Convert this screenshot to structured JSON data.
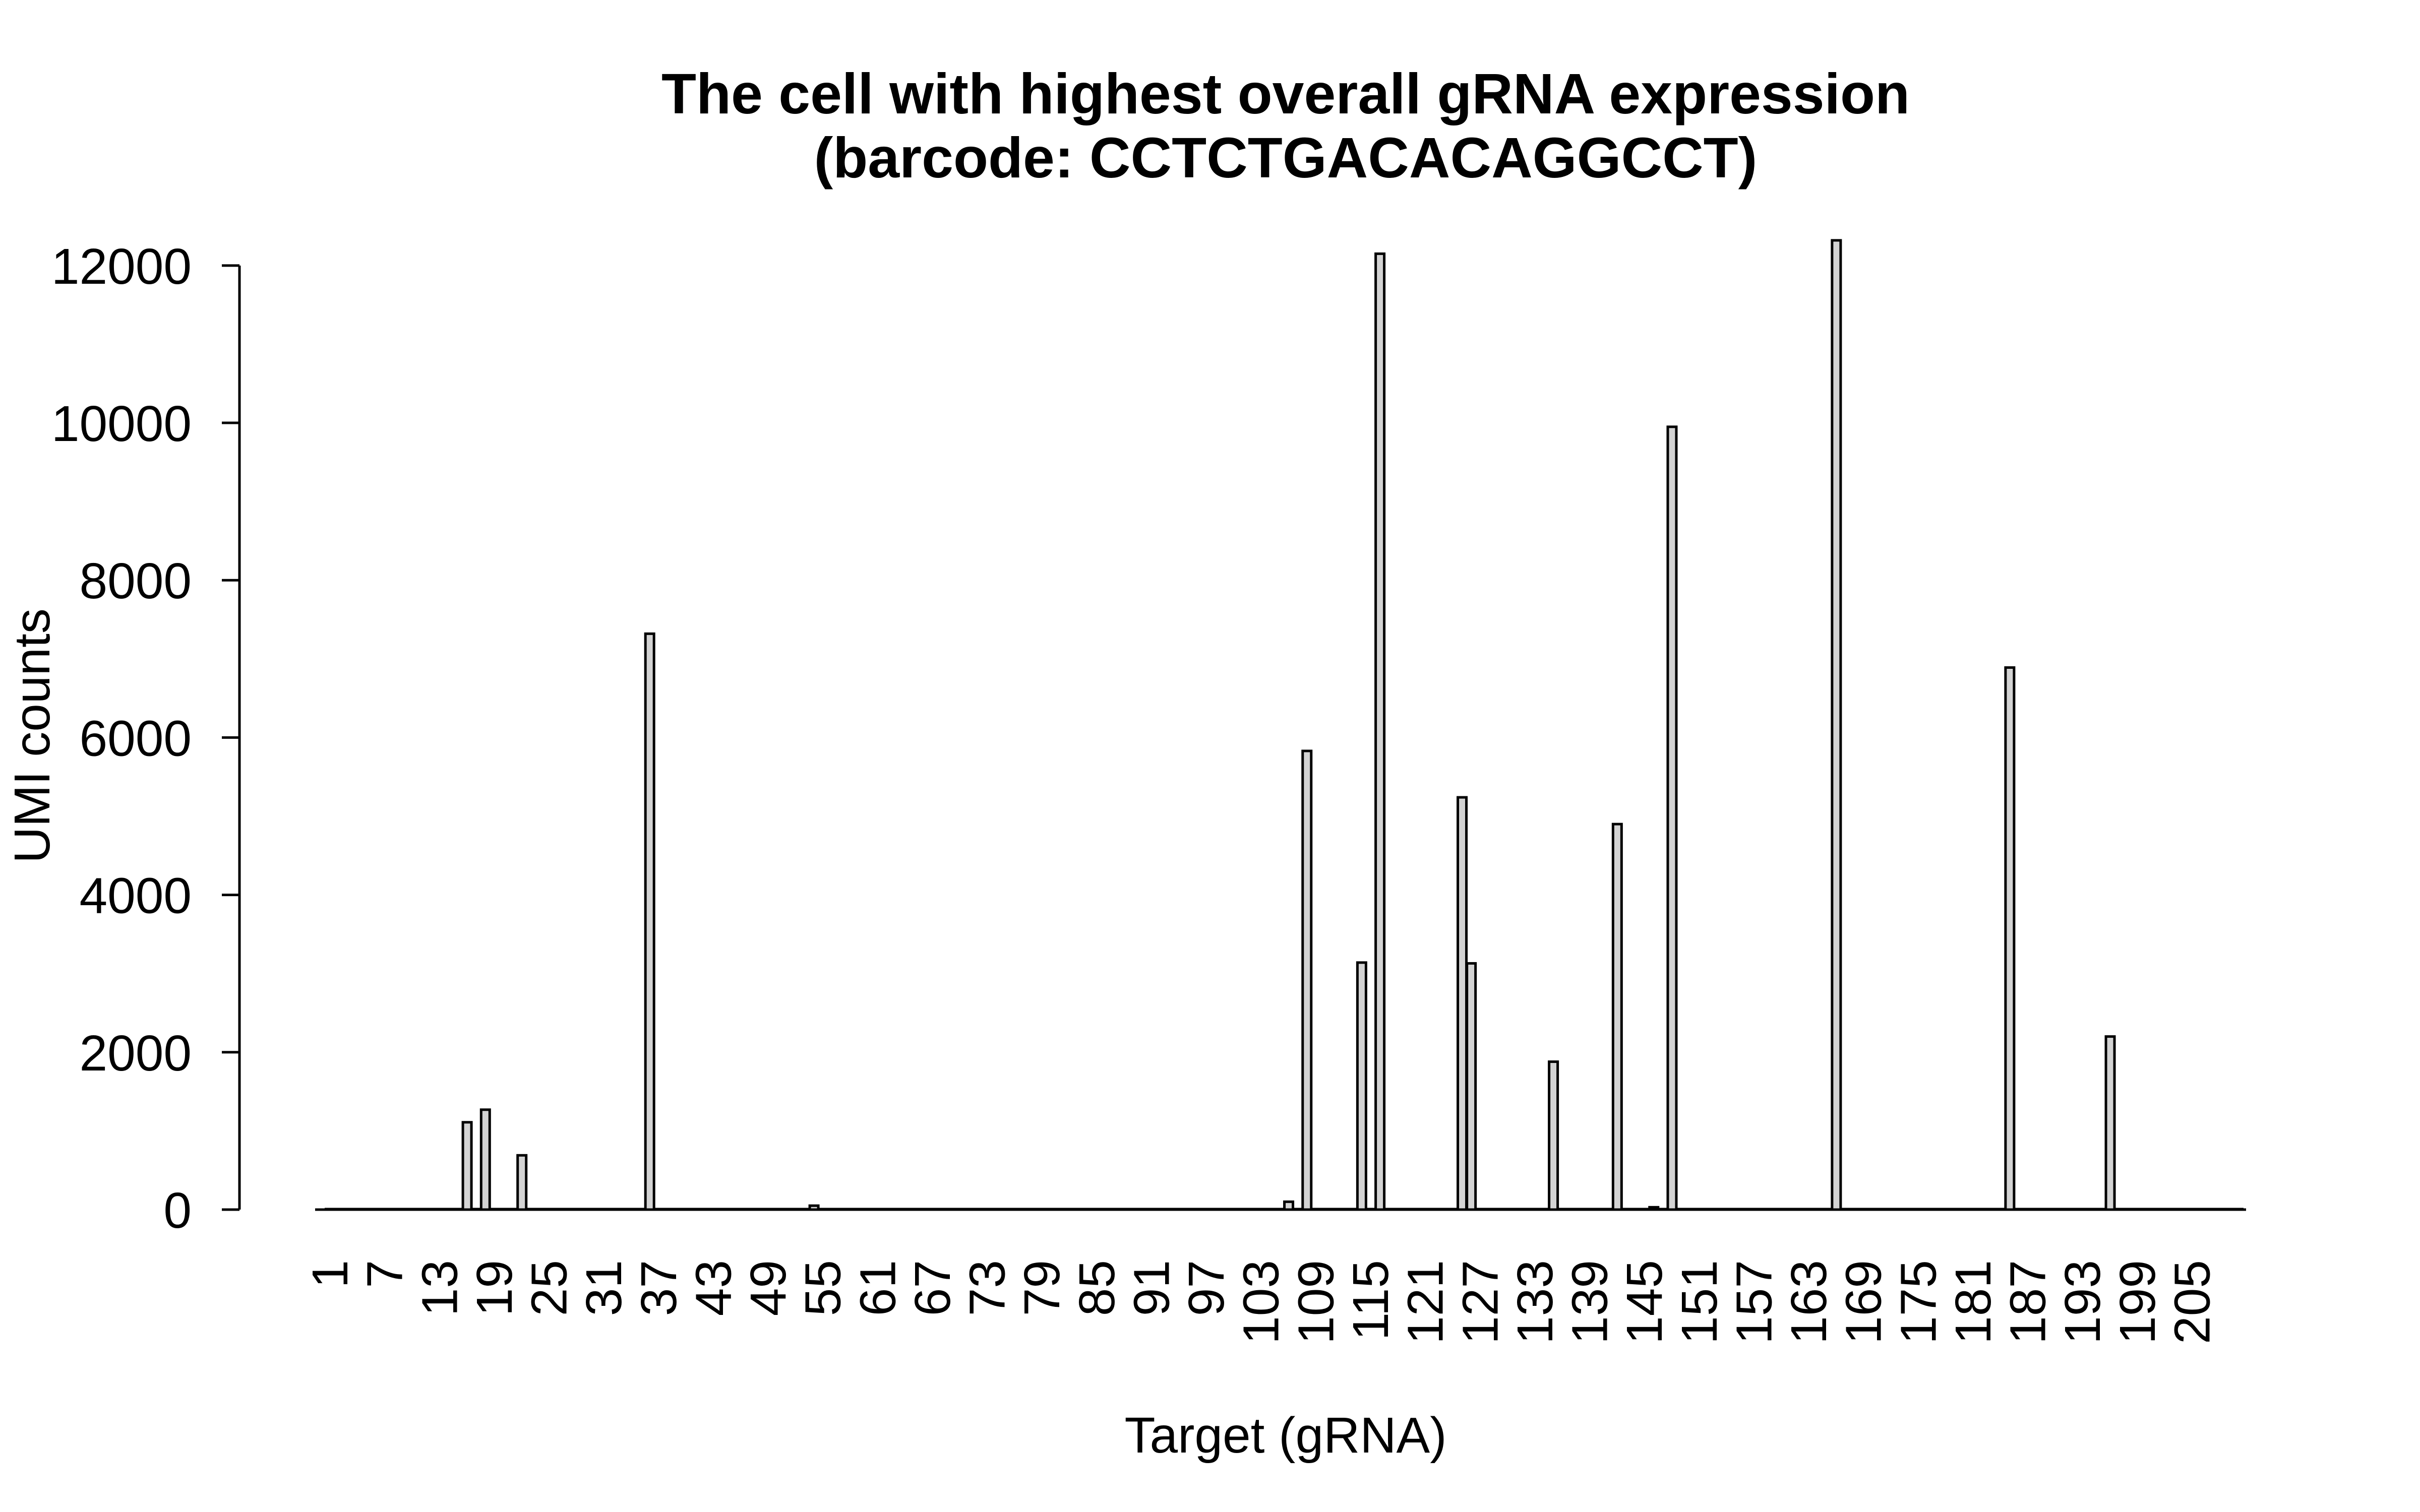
{
  "chart_data": {
    "type": "bar",
    "title": "The cell with highest overall gRNA expression",
    "subtitle": "(barcode: CCTCTGACACAGGCCT)",
    "xlabel": "Target (gRNA)",
    "ylabel": "UMI counts",
    "ylim": [
      0,
      12300
    ],
    "n_categories": 210,
    "categories_shown": [
      "1",
      "7",
      "13",
      "19",
      "25",
      "31",
      "37",
      "43",
      "49",
      "55",
      "61",
      "67",
      "73",
      "79",
      "85",
      "91",
      "97",
      "103",
      "109",
      "115",
      "121",
      "127",
      "133",
      "139",
      "145",
      "151",
      "157",
      "163",
      "169",
      "175",
      "181",
      "187",
      "193",
      "199",
      "205"
    ],
    "yticks": [
      0,
      2000,
      4000,
      6000,
      8000,
      10000,
      12000
    ],
    "ytick_labels": [
      "0",
      "2000",
      "4000",
      "6000",
      "8000",
      "10000",
      "12000"
    ],
    "grid": false,
    "legend": "none",
    "nonzero_bars": [
      {
        "target": 16,
        "value": 1110
      },
      {
        "target": 18,
        "value": 1270
      },
      {
        "target": 22,
        "value": 690
      },
      {
        "target": 36,
        "value": 7320
      },
      {
        "target": 54,
        "value": 50
      },
      {
        "target": 106,
        "value": 100
      },
      {
        "target": 108,
        "value": 5830
      },
      {
        "target": 114,
        "value": 3140
      },
      {
        "target": 116,
        "value": 12150
      },
      {
        "target": 125,
        "value": 5240
      },
      {
        "target": 126,
        "value": 3130
      },
      {
        "target": 135,
        "value": 1880
      },
      {
        "target": 142,
        "value": 4900
      },
      {
        "target": 146,
        "value": 30
      },
      {
        "target": 148,
        "value": 9950
      },
      {
        "target": 166,
        "value": 12320
      },
      {
        "target": 185,
        "value": 6890
      },
      {
        "target": 196,
        "value": 2200
      }
    ]
  }
}
